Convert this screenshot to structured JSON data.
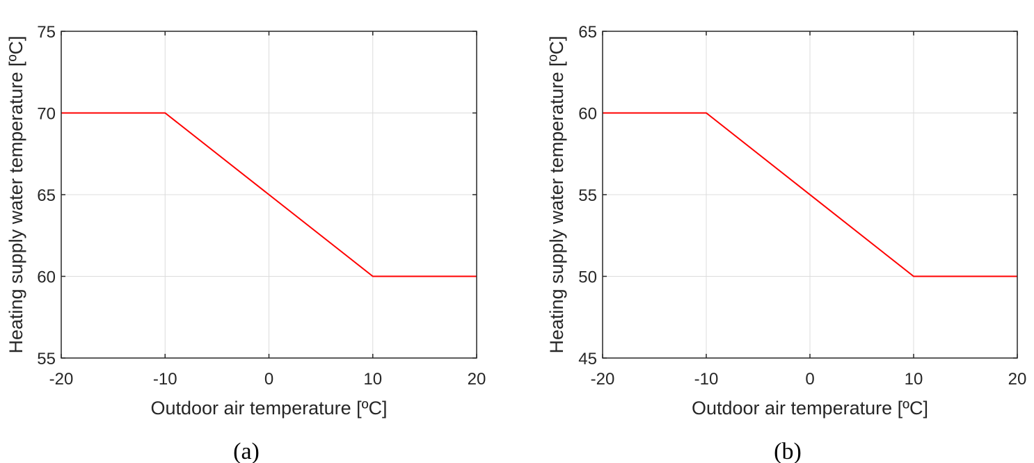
{
  "chart_data": [
    {
      "type": "line",
      "caption": "(a)",
      "xlabel": "Outdoor air temperature [ºC]",
      "ylabel": "Heating supply water temperature [ºC]",
      "xlim": [
        -20,
        20
      ],
      "ylim": [
        55,
        75
      ],
      "xticks": [
        -20,
        -10,
        0,
        10,
        20
      ],
      "yticks": [
        55,
        60,
        65,
        70,
        75
      ],
      "grid": true,
      "series": [
        {
          "color": "#ff0000",
          "x": [
            -20,
            -10,
            10,
            20
          ],
          "y": [
            70,
            70,
            60,
            60
          ]
        }
      ]
    },
    {
      "type": "line",
      "caption": "(b)",
      "xlabel": "Outdoor air temperature [ºC]",
      "ylabel": "Heating supply water temperature [ºC]",
      "xlim": [
        -20,
        20
      ],
      "ylim": [
        45,
        65
      ],
      "xticks": [
        -20,
        -10,
        0,
        10,
        20
      ],
      "yticks": [
        45,
        50,
        55,
        60,
        65
      ],
      "grid": true,
      "series": [
        {
          "color": "#ff0000",
          "x": [
            -20,
            -10,
            10,
            20
          ],
          "y": [
            60,
            60,
            50,
            50
          ]
        }
      ]
    }
  ]
}
